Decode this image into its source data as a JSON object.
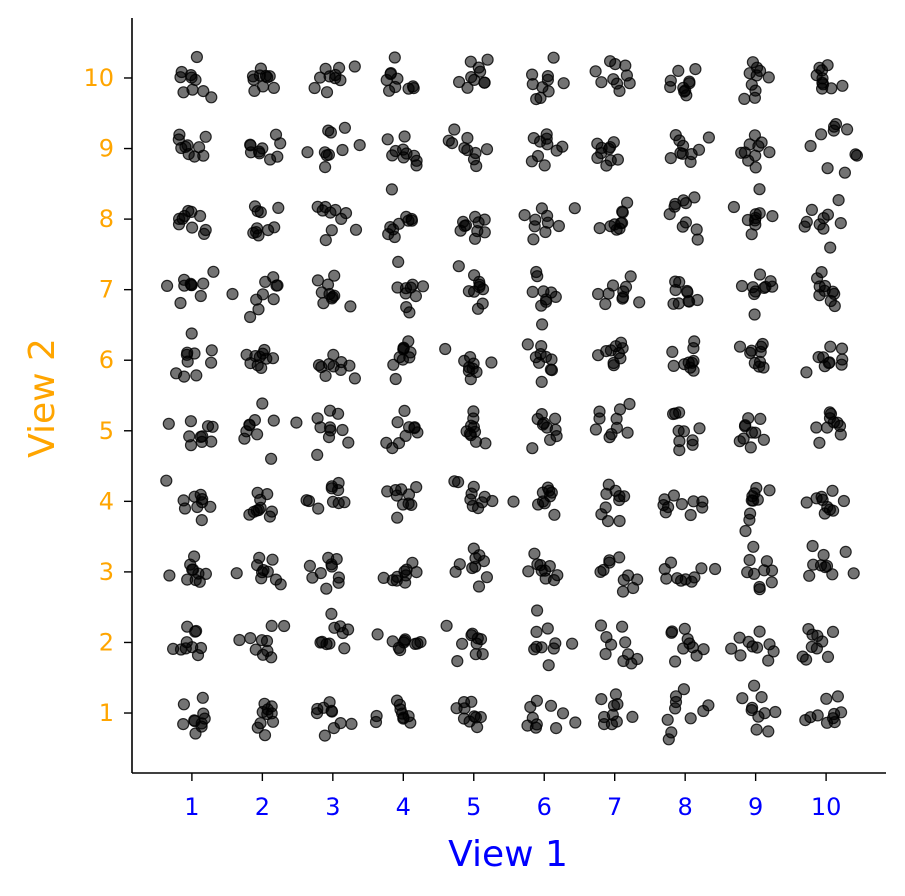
{
  "chart_data": {
    "type": "scatter",
    "title": "",
    "xlabel": "View 1",
    "ylabel": "View 2",
    "xlim": [
      0.15,
      10.85
    ],
    "ylim": [
      0.15,
      10.85
    ],
    "x_ticks": [
      "1",
      "2",
      "3",
      "4",
      "5",
      "6",
      "7",
      "8",
      "9",
      "10"
    ],
    "y_ticks": [
      "1",
      "2",
      "3",
      "4",
      "5",
      "6",
      "7",
      "8",
      "9",
      "10"
    ],
    "grid": false,
    "grid_categories": [
      1,
      2,
      3,
      4,
      5,
      6,
      7,
      8,
      9,
      10
    ],
    "points_per_cell": 10,
    "jitter": 0.15,
    "marker": "circle",
    "colors": {
      "points": "#000000",
      "points_opacity": 0.55,
      "xlabel": "#0000ff",
      "ylabel": "#ffa500",
      "x_ticks": "#0000ff",
      "y_ticks": "#ffa500",
      "axis": "#000000"
    }
  }
}
